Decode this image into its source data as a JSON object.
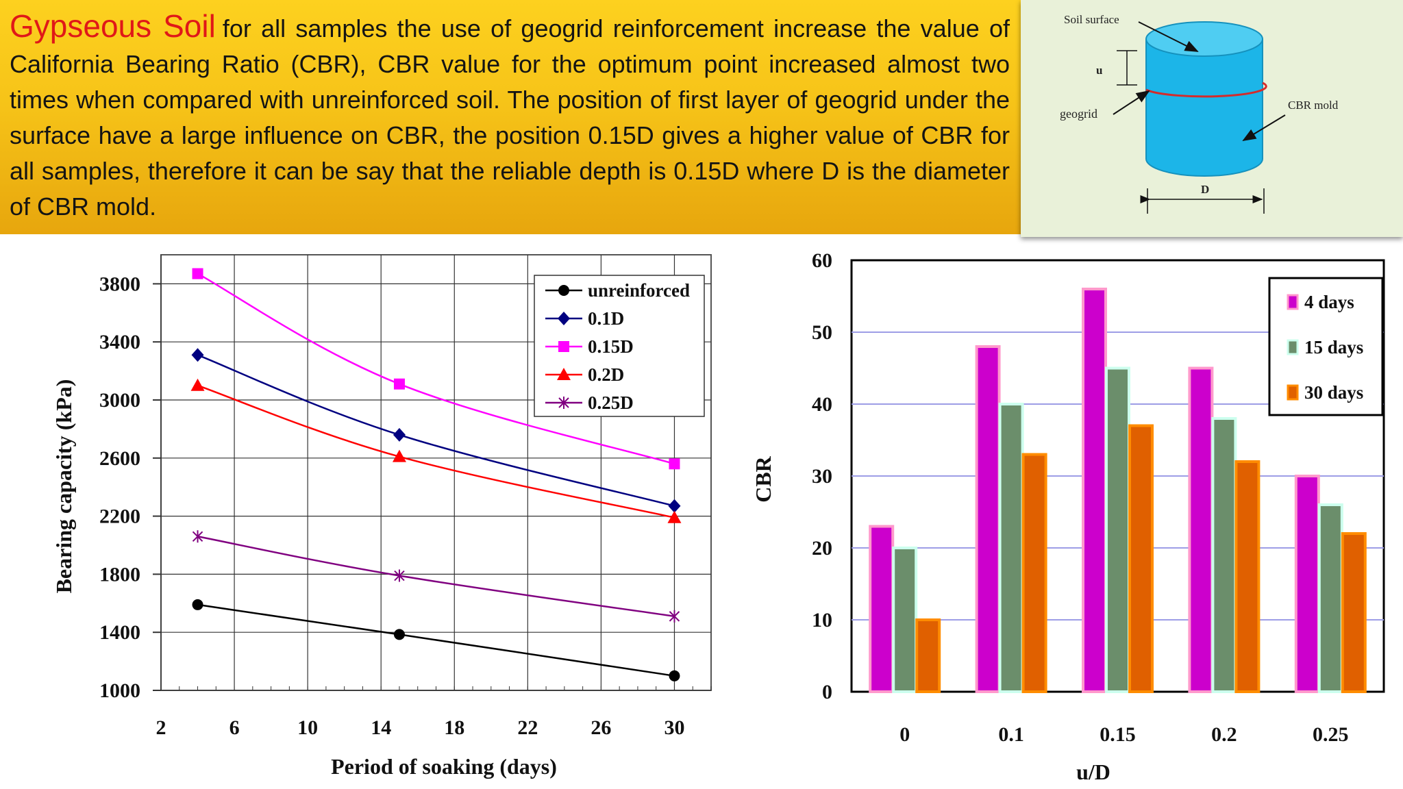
{
  "banner": {
    "title": "Gypseous Soil",
    "body": "for all samples the use of geogrid reinforcement increase the value of California Bearing Ratio (CBR), CBR value for the optimum point increased almost two times when compared with unreinforced soil. The position of first layer of geogrid under the surface have a large influence on CBR, the position 0.15D gives a higher value of CBR for all samples, therefore it can be say that the reliable depth is 0.15D where D is the diameter of CBR mold."
  },
  "diagram": {
    "labels": {
      "soil_surface": "Soil surface",
      "u": "u",
      "geogrid": "geogrid",
      "cbr_mold": "CBR mold",
      "d": "D"
    },
    "colors": {
      "cylinder": "#1cb5e8",
      "cylinder_top": "#4fcdf2",
      "geogrid_line": "#d42b2b",
      "background": "#e9f1d9"
    }
  },
  "chart_data": [
    {
      "type": "line",
      "xlabel": "Period of soaking (days)",
      "ylabel": "Bearing capacity (kPa)",
      "xlim": [
        2,
        32
      ],
      "ylim": [
        1000,
        4000
      ],
      "x_ticks": [
        "2",
        "6",
        "10",
        "14",
        "18",
        "22",
        "26",
        "30"
      ],
      "y_ticks": [
        "1000",
        "1400",
        "1800",
        "2200",
        "2600",
        "3000",
        "3400",
        "3800"
      ],
      "grid": true,
      "legend_position": "top-right",
      "x": [
        4,
        15,
        30
      ],
      "series": [
        {
          "name": "unreinforced",
          "values": [
            1590,
            1385,
            1100
          ],
          "color": "#000000",
          "marker": "circle"
        },
        {
          "name": "0.1D",
          "values": [
            3310,
            2760,
            2270
          ],
          "color": "#000080",
          "marker": "diamond"
        },
        {
          "name": "0.15D",
          "values": [
            3870,
            3110,
            2560
          ],
          "color": "#ff00ff",
          "marker": "square"
        },
        {
          "name": "0.2D",
          "values": [
            3100,
            2610,
            2190
          ],
          "color": "#ff0000",
          "marker": "triangle"
        },
        {
          "name": "0.25D",
          "values": [
            2060,
            1790,
            1510
          ],
          "color": "#800080",
          "marker": "x"
        }
      ]
    },
    {
      "type": "bar",
      "xlabel": "u/D",
      "ylabel": "CBR",
      "ylim": [
        0,
        60
      ],
      "y_ticks": [
        "0",
        "10",
        "20",
        "30",
        "40",
        "50",
        "60"
      ],
      "grid": true,
      "legend_position": "top-right",
      "categories": [
        "0",
        "0.1",
        "0.15",
        "0.2",
        "0.25"
      ],
      "series": [
        {
          "name": "4 days",
          "values": [
            23,
            48,
            56,
            45,
            30
          ],
          "color": "#cc00cc",
          "edge": "#ff99cc"
        },
        {
          "name": "15 days",
          "values": [
            20,
            40,
            45,
            38,
            26
          ],
          "color": "#6b8e6b",
          "edge": "#ccffee"
        },
        {
          "name": "30 days",
          "values": [
            10,
            33,
            37,
            32,
            22
          ],
          "color": "#e06000",
          "edge": "#ff8c00"
        }
      ]
    }
  ]
}
